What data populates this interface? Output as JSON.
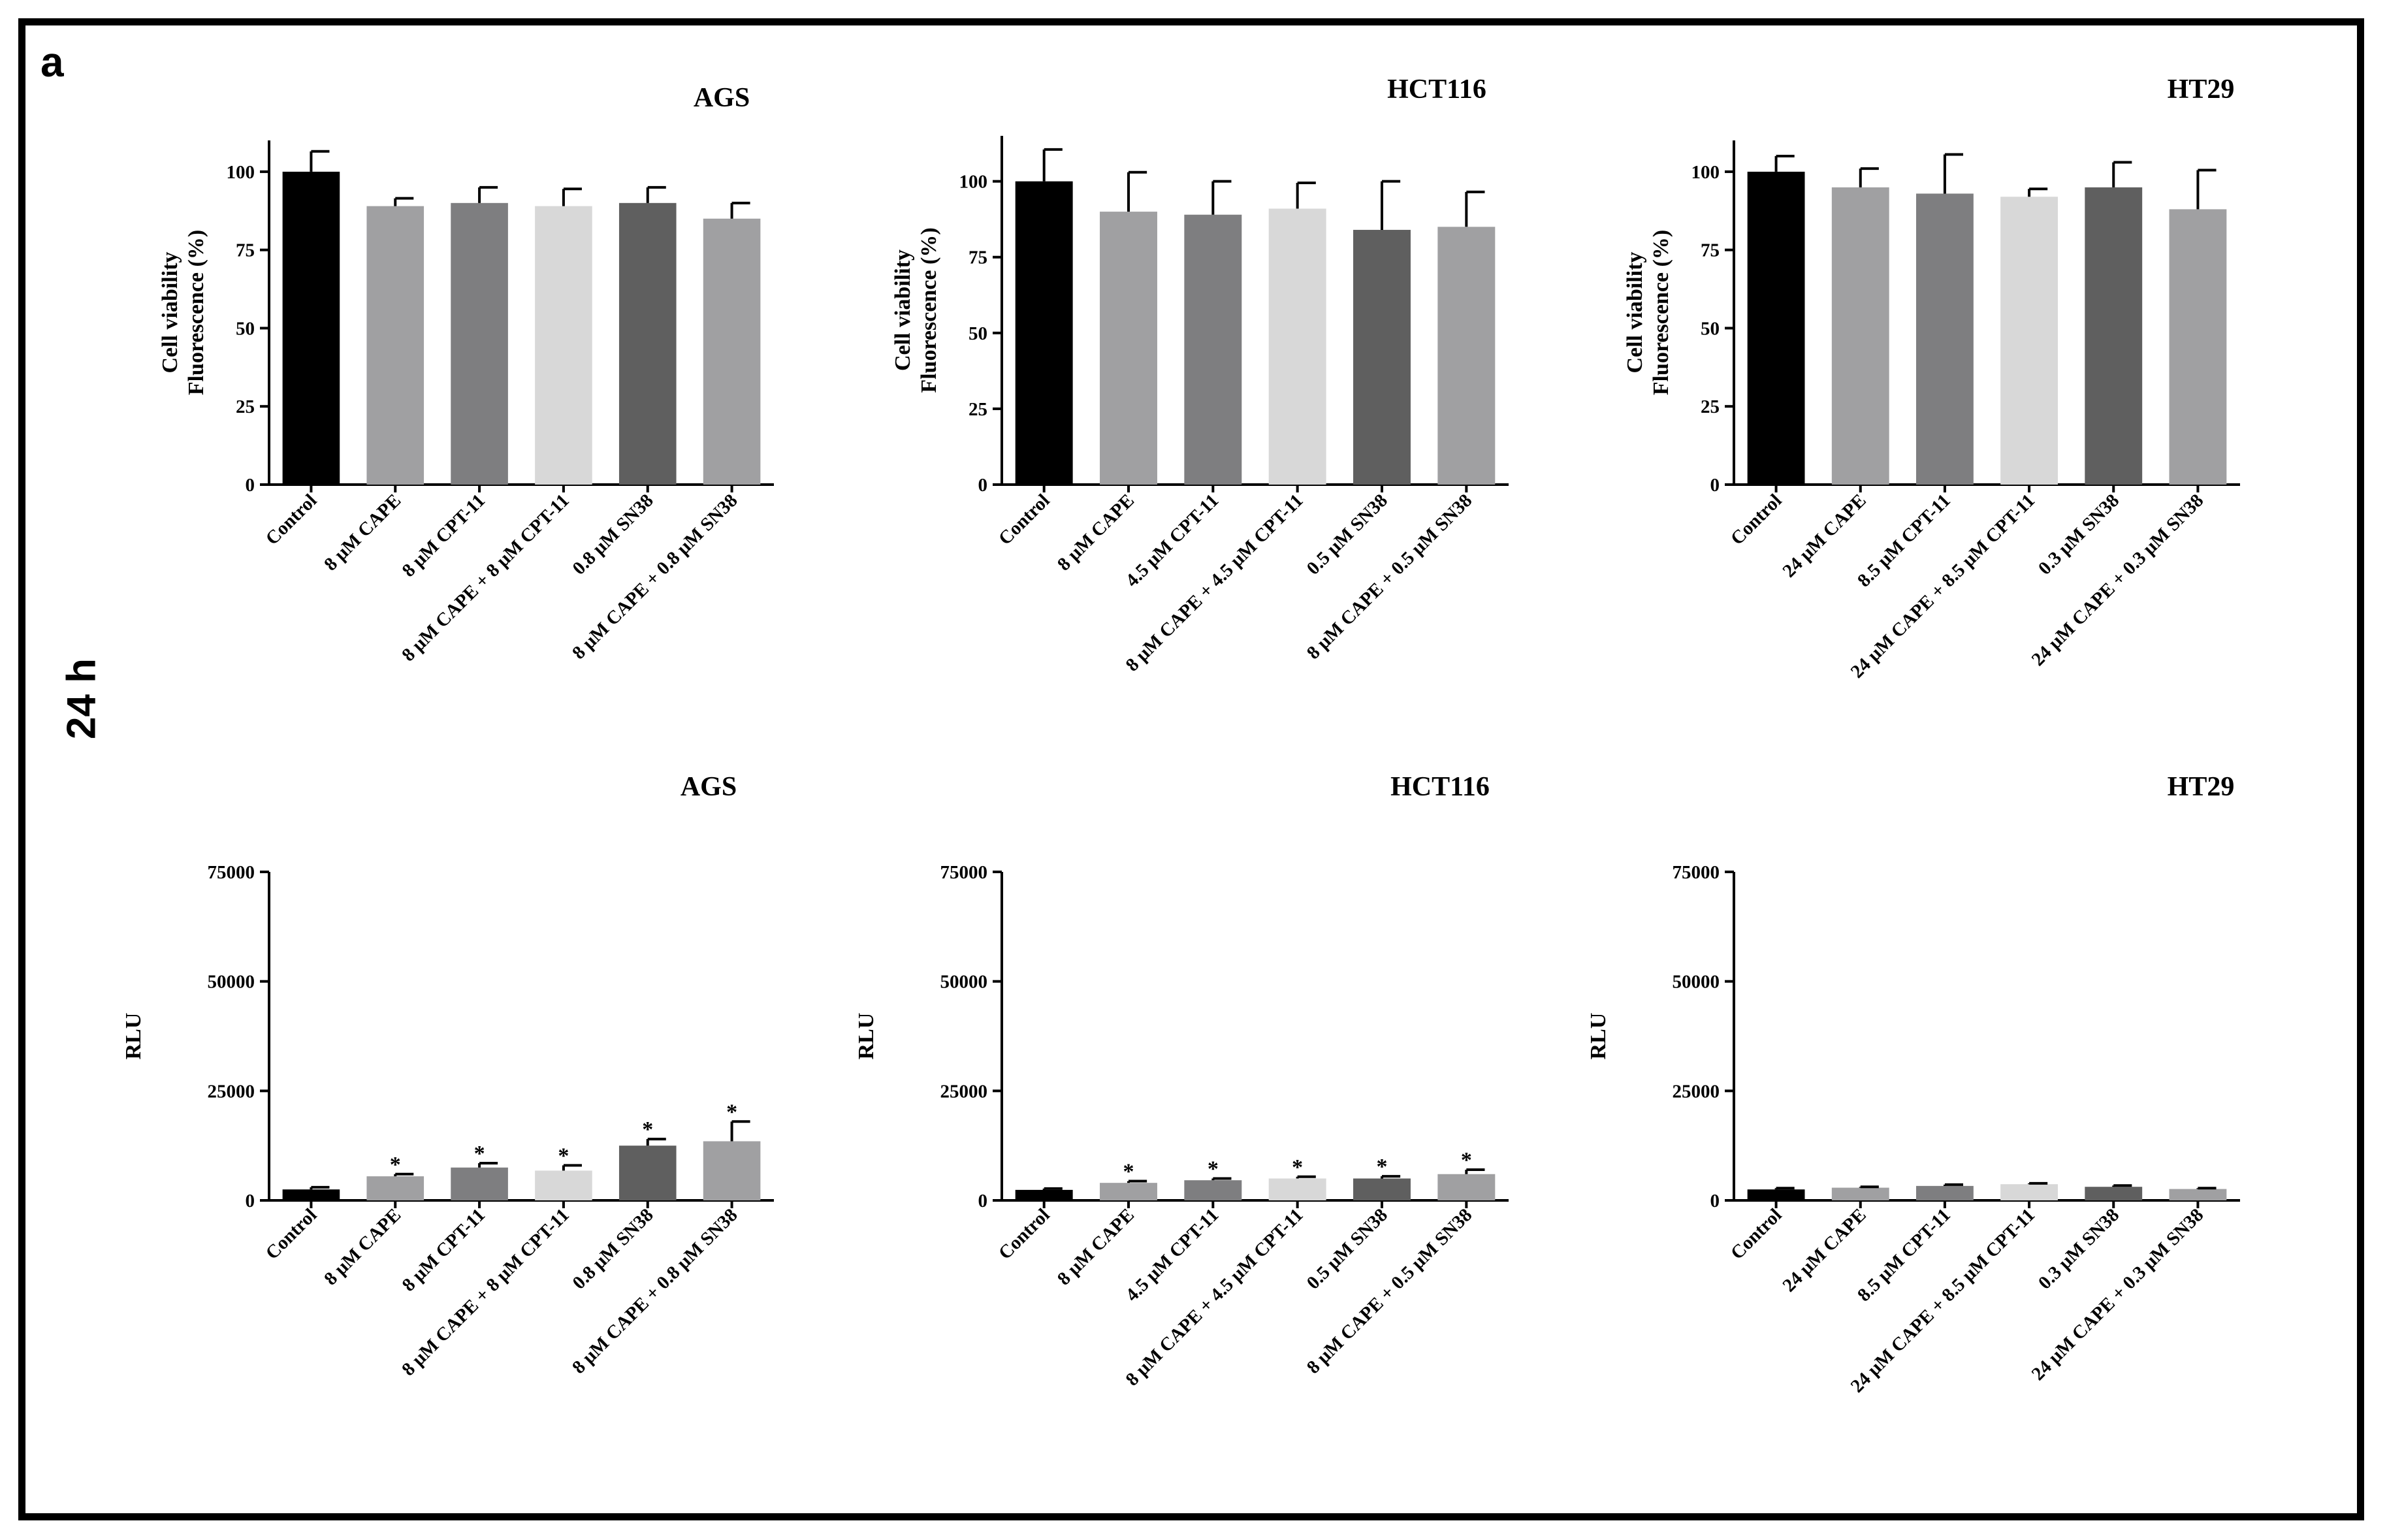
{
  "figure": {
    "panel_label": "a",
    "time_label": "24 h",
    "colors": [
      "#000000",
      "#a0a0a2",
      "#7e7e80",
      "#d8d8d8",
      "#5f5f5f",
      "#a0a0a2"
    ],
    "significance_marker": "*"
  },
  "chart_data": [
    {
      "type": "bar",
      "title": "AGS",
      "ylabel_lines": [
        "Cell viability",
        "Fluorescence (%)"
      ],
      "ylim": [
        0,
        110
      ],
      "yticks": [
        "0",
        "25",
        "50",
        "75",
        "100"
      ],
      "categories": [
        "Control",
        "8 μM CAPE",
        "8 μM CPT-11",
        "8 μM CAPE + 8 μM CPT-11",
        "0.8 μM SN38",
        "8 μM CAPE + 0.8 μM SN38"
      ],
      "values": [
        100,
        89,
        90,
        89,
        90,
        85
      ],
      "errors": [
        6.5,
        2.5,
        5,
        5.5,
        5,
        5
      ],
      "significant": [
        false,
        false,
        false,
        false,
        false,
        false
      ]
    },
    {
      "type": "bar",
      "title": "HCT116",
      "ylabel_lines": [
        "Cell viability",
        "Fluorescence (%)"
      ],
      "ylim": [
        0,
        115
      ],
      "yticks": [
        "0",
        "25",
        "50",
        "75",
        "100"
      ],
      "categories": [
        "Control",
        "8 μM CAPE",
        "4.5 μM CPT-11",
        "8 μM CAPE + 4.5 μM CPT-11",
        "0.5 μM SN38",
        "8 μM CAPE + 0.5 μM SN38"
      ],
      "values": [
        100,
        90,
        89,
        91,
        84,
        85
      ],
      "errors": [
        10.5,
        13,
        11,
        8.5,
        16,
        11.5
      ],
      "significant": [
        false,
        false,
        false,
        false,
        false,
        false
      ]
    },
    {
      "type": "bar",
      "title": "HT29",
      "ylabel_lines": [
        "Cell viability",
        "Fluorescence (%)"
      ],
      "ylim": [
        0,
        110
      ],
      "yticks": [
        "0",
        "25",
        "50",
        "75",
        "100"
      ],
      "categories": [
        "Control",
        "24 μM CAPE",
        "8.5 μM CPT-11",
        "24 μM CAPE + 8.5 μM CPT-11",
        "0.3 μM SN38",
        "24 μM CAPE + 0.3 μM SN38"
      ],
      "values": [
        100,
        95,
        93,
        92,
        95,
        88
      ],
      "errors": [
        5,
        6,
        12.5,
        2.5,
        8,
        12.5
      ],
      "significant": [
        false,
        false,
        false,
        false,
        false,
        false
      ]
    },
    {
      "type": "bar",
      "title": "AGS",
      "ylabel_lines": [
        "RLU"
      ],
      "ylim": [
        0,
        75000
      ],
      "yticks": [
        "0",
        "25000",
        "50000",
        "75000"
      ],
      "categories": [
        "Control",
        "8 μM CAPE",
        "8 μM CPT-11",
        "8 μM CAPE + 8 μM CPT-11",
        "0.8 μM SN38",
        "8 μM CAPE + 0.8 μM SN38"
      ],
      "values": [
        2500,
        5500,
        7500,
        6800,
        12500,
        13500
      ],
      "errors": [
        500,
        500,
        1000,
        1200,
        1500,
        4500
      ],
      "significant": [
        false,
        true,
        true,
        true,
        true,
        true
      ]
    },
    {
      "type": "bar",
      "title": "HCT116",
      "ylabel_lines": [
        "RLU"
      ],
      "ylim": [
        0,
        75000
      ],
      "yticks": [
        "0",
        "25000",
        "50000",
        "75000"
      ],
      "categories": [
        "Control",
        "8 μM CAPE",
        "4.5 μM CPT-11",
        "8 μM CAPE + 4.5 μM CPT-11",
        "0.5 μM SN38",
        "8 μM CAPE + 0.5 μM SN38"
      ],
      "values": [
        2400,
        4000,
        4600,
        5000,
        5000,
        6000
      ],
      "errors": [
        300,
        400,
        400,
        400,
        500,
        1000
      ],
      "significant": [
        false,
        true,
        true,
        true,
        true,
        true
      ]
    },
    {
      "type": "bar",
      "title": "HT29",
      "ylabel_lines": [
        "RLU"
      ],
      "ylim": [
        0,
        75000
      ],
      "yticks": [
        "0",
        "25000",
        "50000",
        "75000"
      ],
      "categories": [
        "Control",
        "24 μM CAPE",
        "8.5 μM CPT-11",
        "24 μM CAPE + 8.5 μM CPT-11",
        "0.3 μM SN38",
        "24 μM CAPE + 0.3 μM SN38"
      ],
      "values": [
        2500,
        2900,
        3300,
        3700,
        3100,
        2600
      ],
      "errors": [
        300,
        200,
        300,
        200,
        300,
        200
      ],
      "significant": [
        false,
        false,
        false,
        false,
        false,
        false
      ]
    }
  ]
}
